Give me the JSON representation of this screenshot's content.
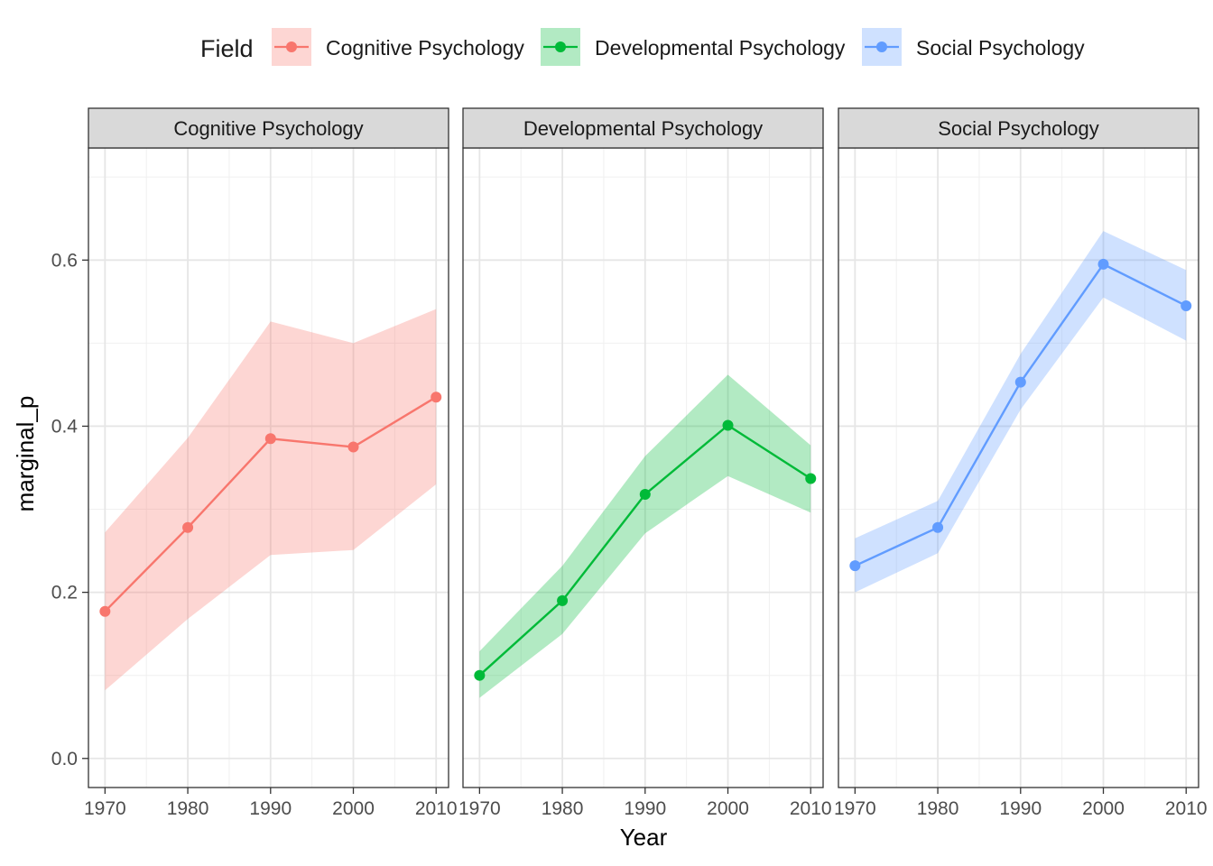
{
  "legend": {
    "title": "Field",
    "placement": "top",
    "entries": [
      {
        "label": "Cognitive Psychology",
        "color": "#F8766D",
        "fill": "#F8766D"
      },
      {
        "label": "Developmental Psychology",
        "color": "#00BA38",
        "fill": "#00BA38"
      },
      {
        "label": "Social Psychology",
        "color": "#619CFF",
        "fill": "#619CFF"
      }
    ]
  },
  "chart_data": {
    "type": "line",
    "facet_by": "Field",
    "xlabel": "Year",
    "ylabel": "marginal_p",
    "x_ticks": [
      "1970",
      "1980",
      "1990",
      "2000",
      "2010"
    ],
    "y_ticks": [
      "0.0",
      "0.2",
      "0.4",
      "0.6"
    ],
    "xlim": [
      1968,
      2011.5
    ],
    "ylim": [
      -0.035,
      0.735
    ],
    "grid": true,
    "ribbon": "confidence band (lower, upper)",
    "x": [
      1970,
      1980,
      1990,
      2000,
      2010
    ],
    "series": [
      {
        "name": "Cognitive Psychology",
        "color": "#F8766D",
        "values": [
          0.177,
          0.278,
          0.385,
          0.375,
          0.435
        ],
        "lower": [
          0.082,
          0.168,
          0.245,
          0.251,
          0.33
        ],
        "upper": [
          0.272,
          0.386,
          0.526,
          0.5,
          0.541
        ]
      },
      {
        "name": "Developmental Psychology",
        "color": "#00BA38",
        "values": [
          0.1,
          0.19,
          0.318,
          0.401,
          0.337
        ],
        "lower": [
          0.073,
          0.15,
          0.271,
          0.34,
          0.296
        ],
        "upper": [
          0.129,
          0.232,
          0.364,
          0.462,
          0.377
        ]
      },
      {
        "name": "Social Psychology",
        "color": "#619CFF",
        "values": [
          0.232,
          0.278,
          0.453,
          0.595,
          0.545
        ],
        "lower": [
          0.2,
          0.247,
          0.42,
          0.555,
          0.503
        ],
        "upper": [
          0.265,
          0.31,
          0.487,
          0.635,
          0.588
        ]
      }
    ]
  }
}
